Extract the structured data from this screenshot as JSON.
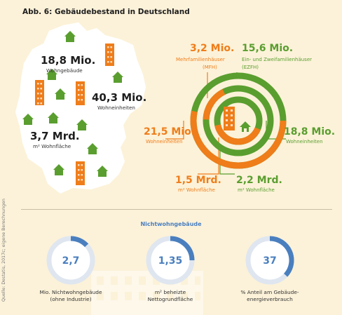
{
  "title": "Abb. 6: Gebäudebestand in Deutschland",
  "map": {
    "wohngebaeude_value": "18,8 Mio.",
    "wohngebaeude_label": "Wohngebäude",
    "wohneinheiten_value": "40,3 Mio.",
    "wohneinheiten_label": "Wohneinheiten",
    "wohnflaeche_value": "3,7 Mrd.",
    "wohnflaeche_label": "m² Wohnfläche"
  },
  "rings": {
    "mfh_value": "3,2 Mio.",
    "mfh_label_1": "Mehrfamilienhäuser",
    "mfh_label_2": "(MFH)",
    "ezfh_value": "15,6 Mio.",
    "ezfh_label_1": "Ein- und Zweifamilienhäuser",
    "ezfh_label_2": "(EZFH)",
    "mfh_we_value": "21,5 Mio.",
    "mfh_we_label": "Wohneinheiten",
    "ezfh_we_value": "18,8 Mio.",
    "ezfh_we_label": "Wohneinheiten",
    "mfh_wf_value": "1,5 Mrd.",
    "mfh_wf_label": "m² Wohnfläche",
    "ezfh_wf_value": "2,2 Mrd.",
    "ezfh_wf_label": "m² Wohnfläche"
  },
  "nichtwohn": {
    "title": "Nichtwohngebäude",
    "gauges": [
      {
        "value": "2,7",
        "label_1": "Mio. Nichtwohngebäude",
        "label_2": "(ohne Industrie)"
      },
      {
        "value": "1,35",
        "label_1": "m² beheizte",
        "label_2": "Nettogrundfläche"
      },
      {
        "value": "37",
        "label_1": "% Anteil am Gebäude-",
        "label_2": "energieverbrauch"
      }
    ]
  },
  "source": "Quelle: Destatis, 2017c; eigene Berechnungen",
  "colors": {
    "background": "#fcf2d9",
    "map_fill": "#ffffff",
    "orange": "#ef7d1a",
    "green": "#5a9e2f",
    "blue": "#4a7fbf",
    "light_blue": "#dfe6f0"
  },
  "chart_data": [
    {
      "type": "pie",
      "categories": [
        "MFH",
        "EZFH"
      ],
      "series": [
        {
          "name": "Wohngebäude",
          "values": [
            3.2,
            15.6
          ],
          "unit": "Mio."
        },
        {
          "name": "Wohneinheiten",
          "values": [
            21.5,
            18.8
          ],
          "unit": "Mio."
        },
        {
          "name": "Wohnfläche",
          "values": [
            1.5,
            2.2
          ],
          "unit": "Mrd. m²"
        }
      ]
    },
    {
      "type": "pie",
      "categories": [
        "Mio. Nichtwohngebäude (ohne Industrie)",
        "m² beheizte Nettogrundfläche",
        "% Anteil am Gebäudeenergieverbrauch"
      ],
      "values": [
        2.7,
        1.35,
        37
      ]
    }
  ]
}
